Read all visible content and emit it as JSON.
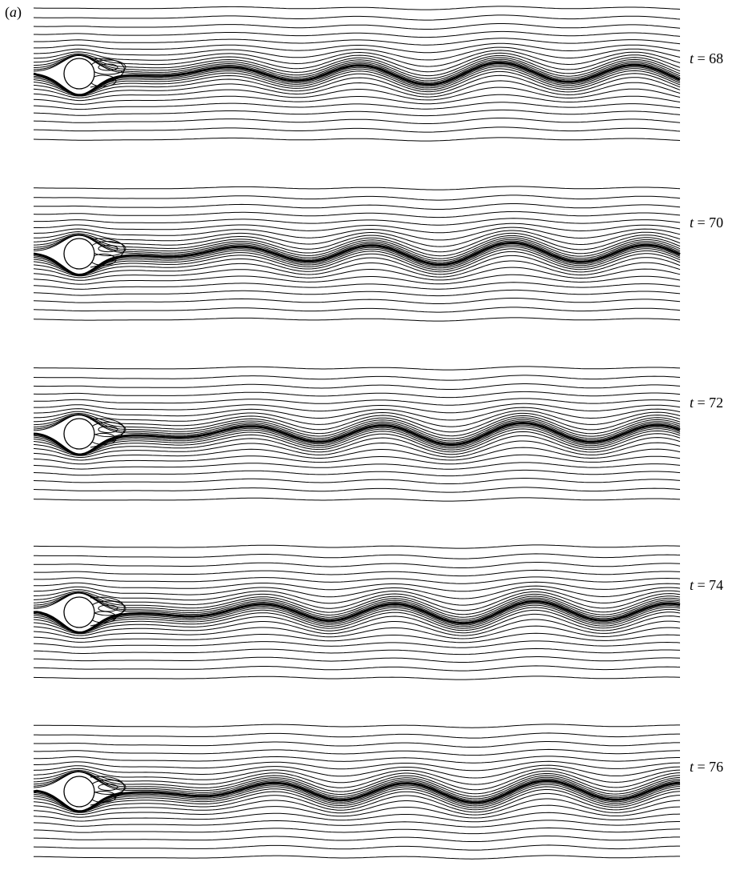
{
  "figure": {
    "panel_label": {
      "open": "(",
      "letter": "a",
      "close": ")"
    },
    "time_variable": "t",
    "equals": " = ",
    "frames": [
      {
        "t": "68",
        "wake_phase": 0.0
      },
      {
        "t": "70",
        "wake_phase": 0.55
      },
      {
        "t": "72",
        "wake_phase": 1.05
      },
      {
        "t": "74",
        "wake_phase": 1.6
      },
      {
        "t": "76",
        "wake_phase": 2.15
      }
    ]
  },
  "colors": {
    "stroke": "#000000",
    "background": "#ffffff"
  }
}
